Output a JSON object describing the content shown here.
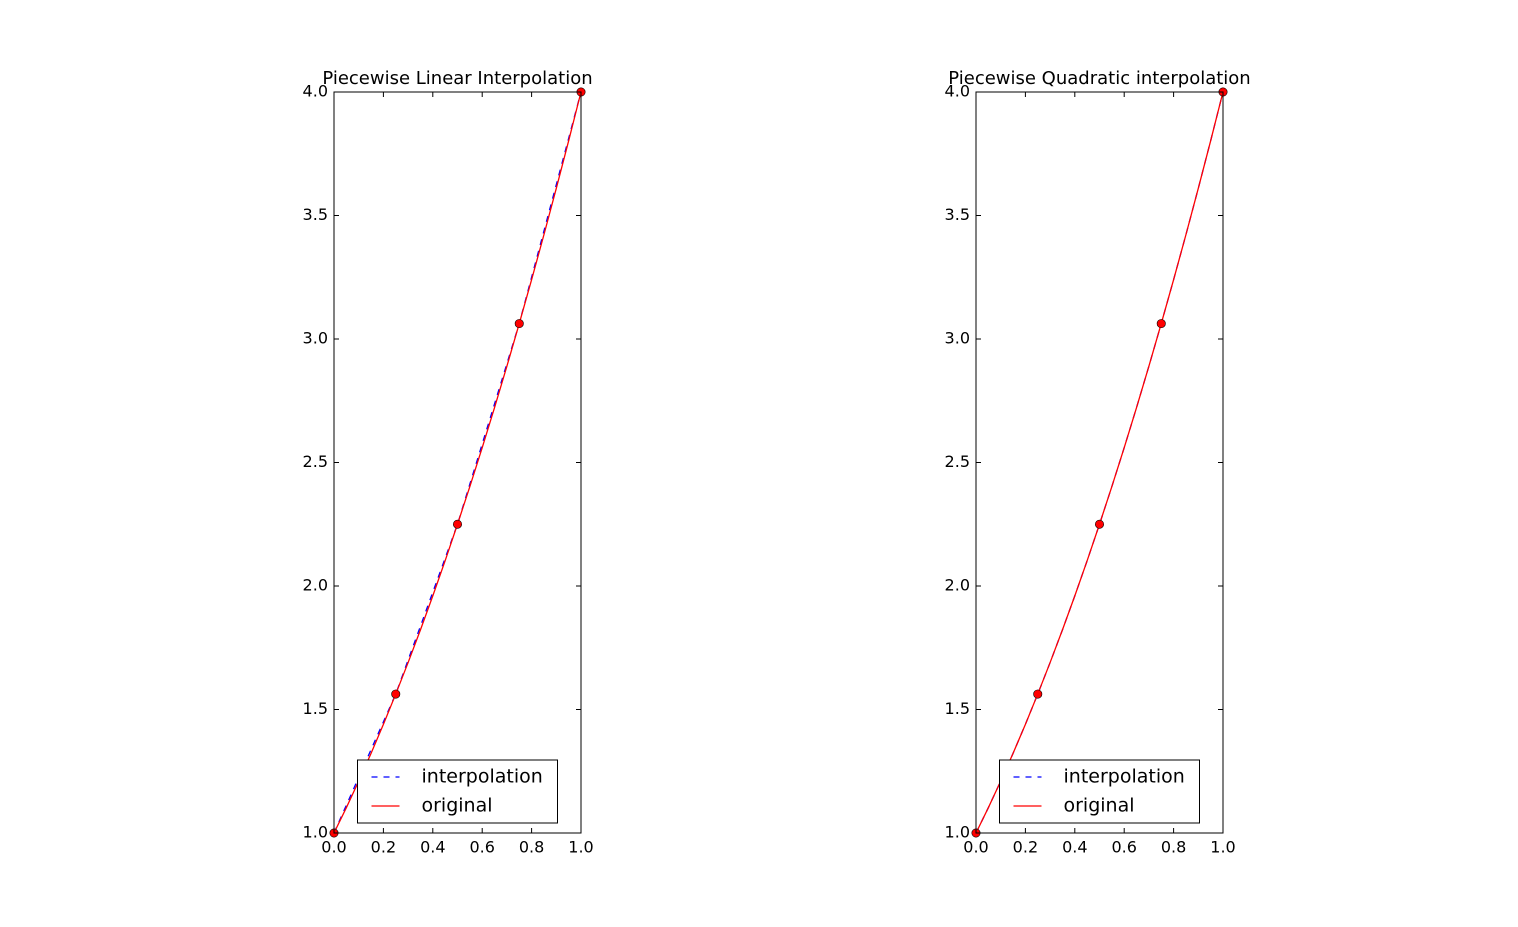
{
  "chart_data": [
    {
      "type": "line",
      "title": "Piecewise Linear Interpolation",
      "xlim": [
        0,
        1
      ],
      "ylim": [
        1,
        4
      ],
      "xticks": [
        {
          "value": 0,
          "label": "0.0"
        },
        0.2,
        0.4,
        0.6,
        0.8,
        {
          "value": 1,
          "label": "1.0"
        }
      ],
      "yticks": [
        {
          "value": 1,
          "label": "1.0"
        },
        1.5,
        {
          "value": 2,
          "label": "2.0"
        },
        2.5,
        {
          "value": 3,
          "label": "3.0"
        },
        3.5,
        {
          "value": 4,
          "label": "4.0"
        }
      ],
      "legend": "lower center",
      "series": [
        {
          "name": "interpolation",
          "color": "#0000ff",
          "dashed": true,
          "x": [
            0,
            0.25,
            0.5,
            0.75,
            1
          ],
          "values": [
            1,
            1.5625,
            2.25,
            3.0625,
            4
          ]
        },
        {
          "name": "original",
          "color": "#ff0000",
          "dashed": false,
          "x": [
            0,
            0.05,
            0.1,
            0.15,
            0.2,
            0.25,
            0.3,
            0.35,
            0.4,
            0.45,
            0.5,
            0.55,
            0.6,
            0.65,
            0.7,
            0.75,
            0.8,
            0.85,
            0.9,
            0.95,
            1
          ],
          "values": [
            1,
            1.1025,
            1.21,
            1.3225,
            1.44,
            1.5625,
            1.69,
            1.8225,
            1.96,
            2.1025,
            2.25,
            2.4025,
            2.56,
            2.7225,
            2.89,
            3.0625,
            3.24,
            3.4225,
            3.61,
            3.8025,
            4
          ]
        }
      ],
      "points": {
        "color": "#ff0000",
        "x": [
          0,
          0.25,
          0.5,
          0.75,
          1
        ],
        "values": [
          1,
          1.5625,
          2.25,
          3.0625,
          4
        ]
      }
    },
    {
      "type": "line",
      "title": "Piecewise Quadratic interpolation",
      "xlim": [
        0,
        1
      ],
      "ylim": [
        1,
        4
      ],
      "xticks": [
        {
          "value": 0,
          "label": "0.0"
        },
        0.2,
        0.4,
        0.6,
        0.8,
        {
          "value": 1,
          "label": "1.0"
        }
      ],
      "yticks": [
        {
          "value": 1,
          "label": "1.0"
        },
        1.5,
        {
          "value": 2,
          "label": "2.0"
        },
        2.5,
        {
          "value": 3,
          "label": "3.0"
        },
        3.5,
        {
          "value": 4,
          "label": "4.0"
        }
      ],
      "legend": "lower center",
      "series": [
        {
          "name": "interpolation",
          "color": "#0000ff",
          "dashed": true,
          "x": [
            0,
            0.05,
            0.1,
            0.15,
            0.2,
            0.25,
            0.3,
            0.35,
            0.4,
            0.45,
            0.5,
            0.55,
            0.6,
            0.65,
            0.7,
            0.75,
            0.8,
            0.85,
            0.9,
            0.95,
            1
          ],
          "values": [
            1,
            1.1025,
            1.21,
            1.3225,
            1.44,
            1.5625,
            1.69,
            1.8225,
            1.96,
            2.1025,
            2.25,
            2.4025,
            2.56,
            2.7225,
            2.89,
            3.0625,
            3.24,
            3.4225,
            3.61,
            3.8025,
            4
          ]
        },
        {
          "name": "original",
          "color": "#ff0000",
          "dashed": false,
          "x": [
            0,
            0.05,
            0.1,
            0.15,
            0.2,
            0.25,
            0.3,
            0.35,
            0.4,
            0.45,
            0.5,
            0.55,
            0.6,
            0.65,
            0.7,
            0.75,
            0.8,
            0.85,
            0.9,
            0.95,
            1
          ],
          "values": [
            1,
            1.1025,
            1.21,
            1.3225,
            1.44,
            1.5625,
            1.69,
            1.8225,
            1.96,
            2.1025,
            2.25,
            2.4025,
            2.56,
            2.7225,
            2.89,
            3.0625,
            3.24,
            3.4225,
            3.61,
            3.8025,
            4
          ]
        }
      ],
      "points": {
        "color": "#ff0000",
        "x": [
          0,
          0.25,
          0.5,
          0.75,
          1
        ],
        "values": [
          1,
          1.5625,
          2.25,
          3.0625,
          4
        ]
      }
    }
  ]
}
